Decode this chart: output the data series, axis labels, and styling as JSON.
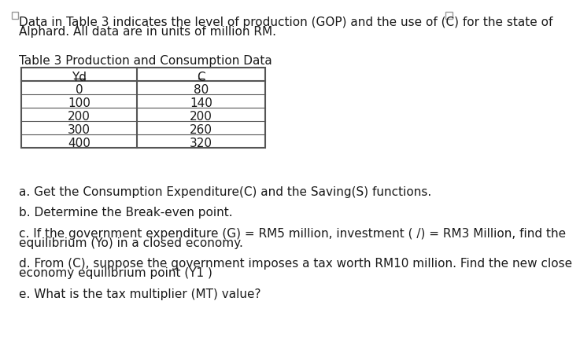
{
  "intro_text_line1": "Data in Table 3 indicates the level of production (GOP) and the use of (C) for the state of",
  "intro_text_line2": "Alphard. All data are in units of million RM.",
  "table_title": "Table 3 Production and Consumption Data",
  "table_headers": [
    "Yd",
    "C"
  ],
  "table_data": [
    [
      "0",
      "80"
    ],
    [
      "100",
      "140"
    ],
    [
      "200",
      "200"
    ],
    [
      "300",
      "260"
    ],
    [
      "400",
      "320"
    ]
  ],
  "question_a": "a. Get the Consumption Expenditure(C) and the Saving(S) functions.",
  "question_b": "b. Determine the Break-even point.",
  "question_c1": "c. If the government expenditure (G) = RM5 million, investment ( /) = RM3 Million, find the",
  "question_c2": "equilibrium (Yo) in a closed economy.",
  "question_d1": "d. From (C), suppose the government imposes a tax worth RM10 million. Find the new close",
  "question_d2": "economy equilibrium point (Y1 )",
  "question_e": "e. What is the tax multiplier (MT) value?",
  "background_color": "#ffffff",
  "text_color": "#1a1a1a",
  "font_size": 11,
  "border_color": "#555555"
}
